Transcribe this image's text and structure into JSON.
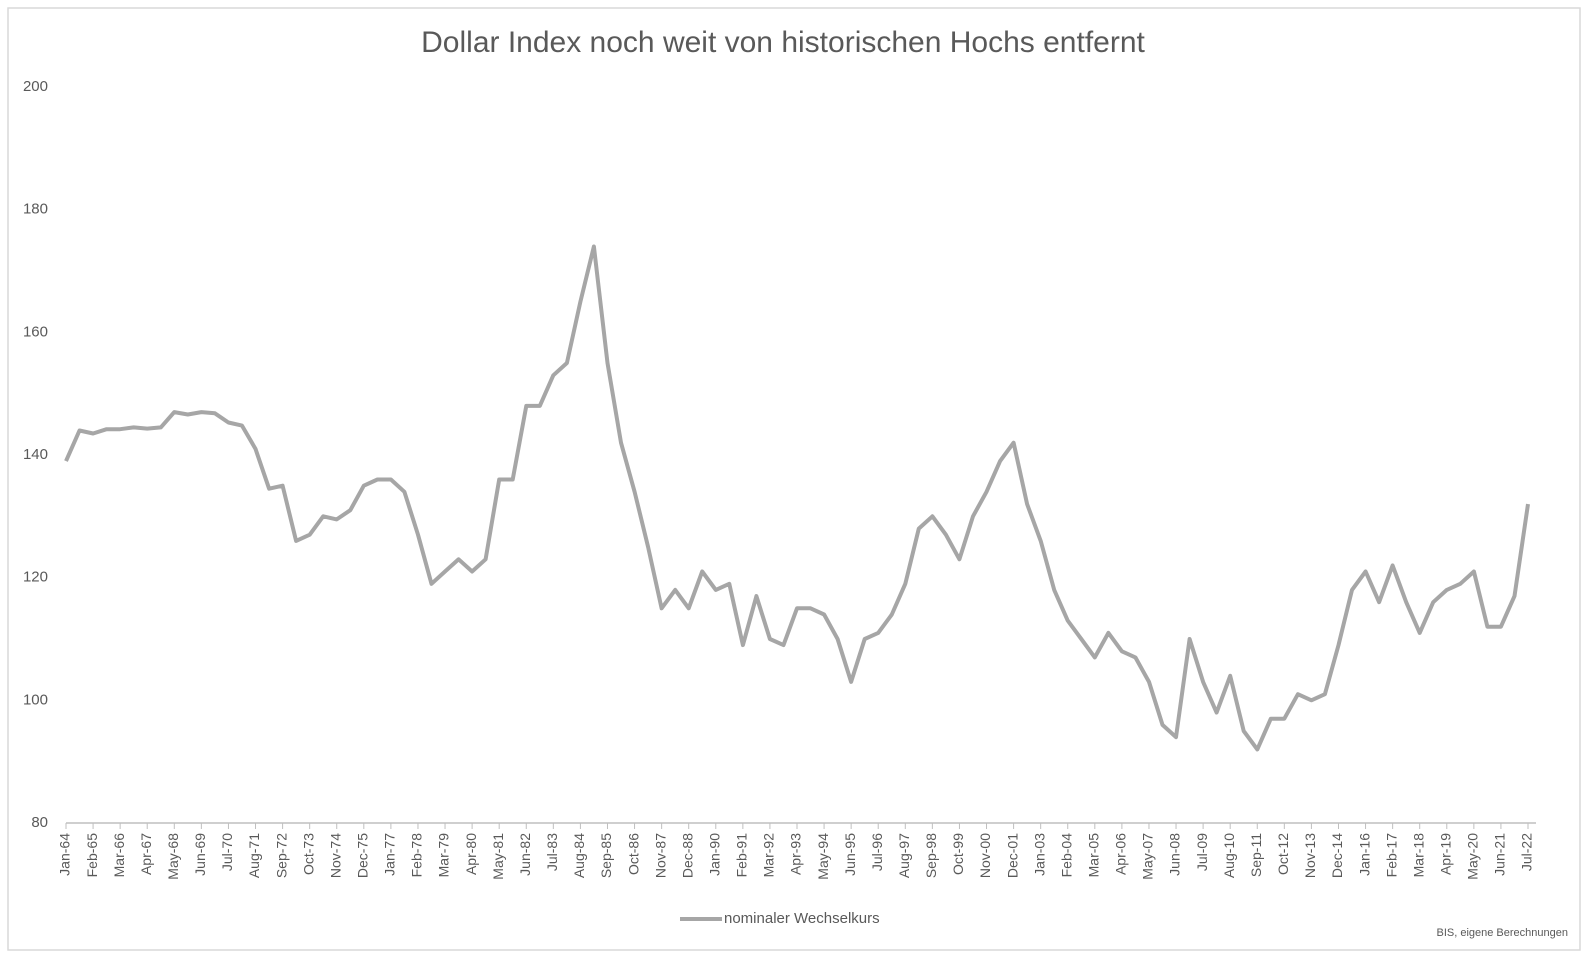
{
  "chart_data": {
    "type": "line",
    "title": "Dollar Index noch weit von historischen Hochs entfernt",
    "source": "BIS, eigene Berechnungen",
    "categories": [
      "Jan-64",
      null,
      "Feb-65",
      null,
      "Mar-66",
      null,
      "Apr-67",
      null,
      "May-68",
      null,
      "Jun-69",
      null,
      "Jul-70",
      null,
      "Aug-71",
      null,
      "Sep-72",
      null,
      "Oct-73",
      null,
      "Nov-74",
      null,
      "Dec-75",
      null,
      "Jan-77",
      null,
      "Feb-78",
      null,
      "Mar-79",
      null,
      "Apr-80",
      null,
      "May-81",
      null,
      "Jun-82",
      null,
      "Jul-83",
      null,
      "Aug-84",
      null,
      "Sep-85",
      null,
      "Oct-86",
      null,
      "Nov-87",
      null,
      "Dec-88",
      null,
      "Jan-90",
      null,
      "Feb-91",
      null,
      "Mar-92",
      null,
      "Apr-93",
      null,
      "May-94",
      null,
      "Jun-95",
      null,
      "Jul-96",
      null,
      "Aug-97",
      null,
      "Sep-98",
      null,
      "Oct-99",
      null,
      "Nov-00",
      null,
      "Dec-01",
      null,
      "Jan-03",
      null,
      "Feb-04",
      null,
      "Mar-05",
      null,
      "Apr-06",
      null,
      "May-07",
      null,
      "Jun-08",
      null,
      "Jul-09",
      null,
      "Aug-10",
      null,
      "Sep-11",
      null,
      "Oct-12",
      null,
      "Nov-13",
      null,
      "Dec-14",
      null,
      "Jan-16",
      null,
      "Feb-17",
      null,
      "Mar-18",
      null,
      "Apr-19",
      null,
      "May-20",
      null,
      "Jun-21",
      null,
      "Jul-22"
    ],
    "series": [
      {
        "name": "nominaler Wechselkurs",
        "color": "#a6a6a6",
        "values": [
          139,
          144,
          143.5,
          144.2,
          144.2,
          144.5,
          144.3,
          144.5,
          147,
          146.6,
          147,
          146.8,
          145.3,
          144.8,
          141,
          134.5,
          135,
          126,
          127,
          130,
          129.5,
          131,
          135,
          136,
          136,
          134,
          127,
          119,
          121,
          123,
          121,
          123,
          136,
          136,
          148,
          148,
          153,
          155,
          165,
          174,
          155,
          142,
          134,
          125,
          115,
          118,
          115,
          121,
          118,
          119,
          109,
          117,
          110,
          109,
          115,
          115,
          114,
          110,
          103,
          110,
          111,
          114,
          119,
          128,
          130,
          127,
          123,
          130,
          134,
          139,
          142,
          132,
          126,
          118,
          113,
          110,
          107,
          111,
          108,
          107,
          103,
          96,
          94,
          110,
          103,
          98,
          104,
          95,
          92,
          97,
          97,
          101,
          100,
          101,
          109,
          118,
          121,
          116,
          122,
          116,
          111,
          116,
          118,
          119,
          121,
          112,
          112,
          117,
          132
        ]
      }
    ],
    "ylim": [
      80,
      200
    ],
    "yticks": [
      80,
      100,
      120,
      140,
      160,
      180,
      200
    ],
    "grid": false,
    "legend": "bottom"
  }
}
